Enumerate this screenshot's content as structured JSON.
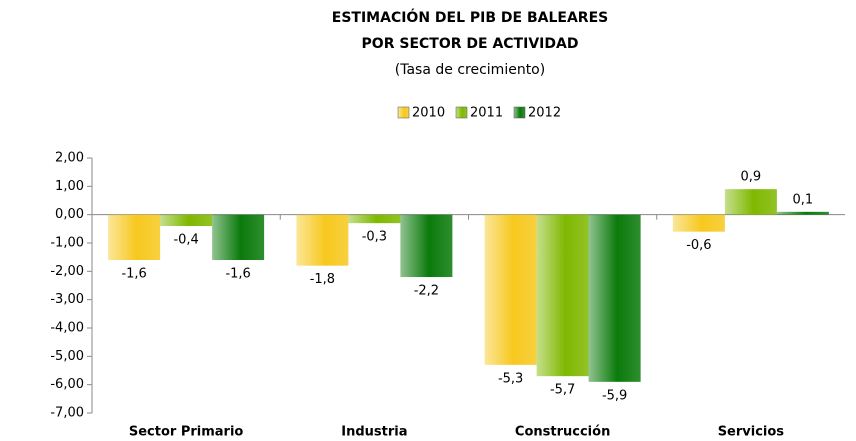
{
  "chart_data": {
    "type": "bar",
    "title": "ESTIMACIÓN DEL PIB DE BALEARES",
    "title_line2": "POR SECTOR DE ACTIVIDAD",
    "subtitle": "(Tasa de crecimiento)",
    "categories": [
      "Sector Primario",
      "Industria",
      "Construcción",
      "Servicios"
    ],
    "series": [
      {
        "name": "2010",
        "color": "#f7c81e",
        "values": [
          -1.6,
          -1.8,
          -5.3,
          -0.6
        ],
        "value_labels": [
          "-1,6",
          "-1,8",
          "-5,3",
          "-0,6"
        ]
      },
      {
        "name": "2011",
        "color": "#7fb800",
        "values": [
          -0.4,
          -0.3,
          -5.7,
          0.9
        ],
        "value_labels": [
          "-0,4",
          "-0,3",
          "-5,7",
          "0,9"
        ]
      },
      {
        "name": "2012",
        "color": "#0a7a0a",
        "values": [
          -1.6,
          -2.2,
          -5.9,
          0.1
        ],
        "value_labels": [
          "-1,6",
          "-2,2",
          "-5,9",
          "0,1"
        ]
      }
    ],
    "ylim": [
      -7,
      2
    ],
    "yticks": [
      {
        "value": 2,
        "label": "2,00"
      },
      {
        "value": 1,
        "label": "1,00"
      },
      {
        "value": 0,
        "label": "0,00"
      },
      {
        "value": -1,
        "label": "-1,00"
      },
      {
        "value": -2,
        "label": "-2,00"
      },
      {
        "value": -3,
        "label": "-3,00"
      },
      {
        "value": -4,
        "label": "-4,00"
      },
      {
        "value": -5,
        "label": "-5,00"
      },
      {
        "value": -6,
        "label": "-6,00"
      },
      {
        "value": -7,
        "label": "-7,00"
      }
    ],
    "legend": "top"
  }
}
